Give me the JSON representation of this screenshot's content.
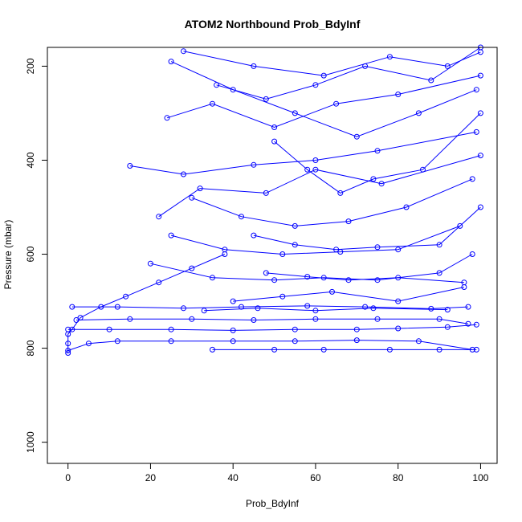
{
  "chart_data": {
    "type": "line",
    "title": "ATOM2 Northbound Prob_BdyInf",
    "xlabel": "Prob_BdyInf",
    "ylabel": "Pressure (mbar)",
    "xlim": [
      -5,
      104
    ],
    "ylim": [
      1045,
      160
    ],
    "y_reversed": true,
    "xticks": [
      0,
      20,
      40,
      60,
      80,
      100
    ],
    "yticks": [
      200,
      400,
      600,
      800,
      1000
    ],
    "grid": false,
    "legend": "none",
    "marker": "open-circle",
    "color": "#0000ff",
    "series": [
      {
        "values": [
          [
            0,
            810
          ],
          [
            0,
            790
          ],
          [
            0,
            770
          ],
          [
            1,
            760
          ],
          [
            3,
            735
          ],
          [
            8,
            712
          ],
          [
            14,
            690
          ],
          [
            22,
            660
          ],
          [
            30,
            630
          ],
          [
            38,
            600
          ]
        ]
      },
      {
        "values": [
          [
            0,
            805
          ],
          [
            5,
            790
          ],
          [
            12,
            785
          ],
          [
            25,
            785
          ],
          [
            40,
            785
          ],
          [
            55,
            785
          ],
          [
            70,
            783
          ],
          [
            85,
            785
          ],
          [
            98,
            803
          ]
        ]
      },
      {
        "values": [
          [
            0,
            760
          ],
          [
            10,
            760
          ],
          [
            25,
            760
          ],
          [
            40,
            762
          ],
          [
            55,
            760
          ],
          [
            70,
            760
          ],
          [
            80,
            758
          ],
          [
            92,
            755
          ],
          [
            99,
            750
          ]
        ]
      },
      {
        "values": [
          [
            2,
            740
          ],
          [
            15,
            738
          ],
          [
            30,
            738
          ],
          [
            45,
            740
          ],
          [
            60,
            738
          ],
          [
            75,
            738
          ],
          [
            90,
            738
          ],
          [
            97,
            748
          ]
        ]
      },
      {
        "values": [
          [
            1,
            712
          ],
          [
            12,
            712
          ],
          [
            28,
            715
          ],
          [
            42,
            712
          ],
          [
            58,
            710
          ],
          [
            72,
            712
          ],
          [
            88,
            716
          ],
          [
            97,
            712
          ]
        ]
      },
      {
        "values": [
          [
            35,
            803
          ],
          [
            50,
            803
          ],
          [
            62,
            803
          ],
          [
            78,
            803
          ],
          [
            90,
            803
          ],
          [
            99,
            803
          ]
        ]
      },
      {
        "values": [
          [
            20,
            620
          ],
          [
            35,
            650
          ],
          [
            50,
            655
          ],
          [
            62,
            650
          ],
          [
            75,
            655
          ],
          [
            90,
            640
          ],
          [
            98,
            600
          ]
        ]
      },
      {
        "values": [
          [
            25,
            560
          ],
          [
            38,
            590
          ],
          [
            52,
            600
          ],
          [
            66,
            595
          ],
          [
            80,
            590
          ],
          [
            95,
            540
          ]
        ]
      },
      {
        "values": [
          [
            30,
            480
          ],
          [
            42,
            520
          ],
          [
            55,
            540
          ],
          [
            68,
            530
          ],
          [
            82,
            500
          ],
          [
            98,
            440
          ]
        ]
      },
      {
        "values": [
          [
            15,
            412
          ],
          [
            28,
            430
          ],
          [
            45,
            410
          ],
          [
            60,
            400
          ],
          [
            75,
            380
          ],
          [
            99,
            340
          ]
        ]
      },
      {
        "values": [
          [
            25,
            190
          ],
          [
            40,
            250
          ],
          [
            55,
            300
          ],
          [
            70,
            350
          ],
          [
            85,
            300
          ],
          [
            99,
            250
          ]
        ]
      },
      {
        "values": [
          [
            28,
            168
          ],
          [
            45,
            200
          ],
          [
            62,
            220
          ],
          [
            78,
            180
          ],
          [
            92,
            200
          ],
          [
            100,
            170
          ]
        ]
      },
      {
        "values": [
          [
            24,
            310
          ],
          [
            35,
            280
          ],
          [
            50,
            330
          ],
          [
            65,
            280
          ],
          [
            80,
            260
          ],
          [
            100,
            220
          ]
        ]
      },
      {
        "values": [
          [
            22,
            520
          ],
          [
            32,
            460
          ],
          [
            48,
            470
          ],
          [
            60,
            420
          ],
          [
            76,
            450
          ],
          [
            100,
            390
          ]
        ]
      },
      {
        "values": [
          [
            40,
            700
          ],
          [
            52,
            690
          ],
          [
            64,
            680
          ],
          [
            80,
            700
          ],
          [
            96,
            670
          ]
        ]
      },
      {
        "values": [
          [
            33,
            720
          ],
          [
            46,
            715
          ],
          [
            60,
            720
          ],
          [
            74,
            715
          ],
          [
            92,
            718
          ]
        ]
      },
      {
        "values": [
          [
            45,
            560
          ],
          [
            55,
            580
          ],
          [
            65,
            590
          ],
          [
            75,
            585
          ],
          [
            90,
            580
          ],
          [
            100,
            500
          ]
        ]
      },
      {
        "values": [
          [
            48,
            640
          ],
          [
            58,
            648
          ],
          [
            68,
            655
          ],
          [
            80,
            650
          ],
          [
            96,
            660
          ]
        ]
      },
      {
        "values": [
          [
            50,
            360
          ],
          [
            58,
            420
          ],
          [
            66,
            470
          ],
          [
            74,
            440
          ],
          [
            86,
            420
          ],
          [
            100,
            300
          ]
        ]
      },
      {
        "values": [
          [
            36,
            240
          ],
          [
            48,
            270
          ],
          [
            60,
            240
          ],
          [
            72,
            200
          ],
          [
            88,
            230
          ],
          [
            100,
            160
          ]
        ]
      }
    ]
  }
}
